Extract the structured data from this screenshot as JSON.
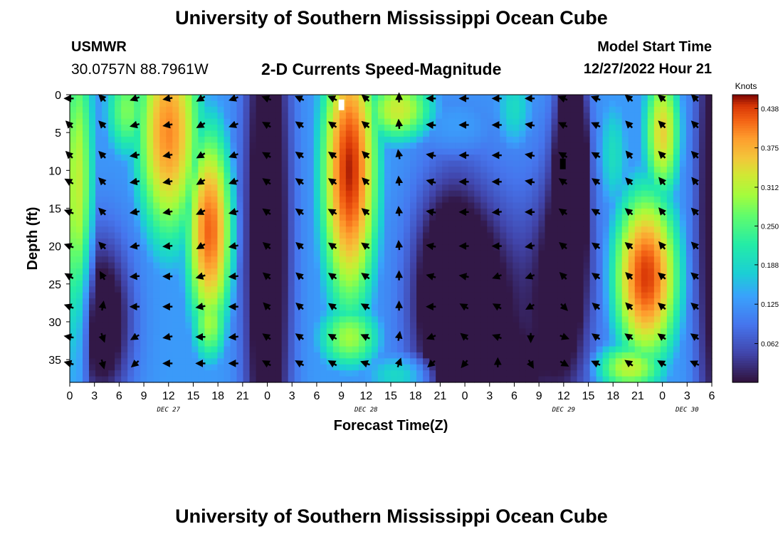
{
  "header": {
    "title": "University of Southern Mississippi Ocean Cube",
    "station": "USMWR",
    "coordinates": "30.0757N  88.7961W",
    "subtitle": "2-D Currents Speed-Magnitude",
    "model_start_label": "Model Start Time",
    "model_start_time": "12/27/2022 Hour 21"
  },
  "footer": {
    "title": "University of Southern Mississippi Ocean Cube"
  },
  "chart_data": {
    "type": "heatmap",
    "title": "2-D Currents Speed-Magnitude",
    "xlabel": "Forecast Time(Z)",
    "ylabel": "Depth (ft)",
    "x_range_hours": [
      0,
      78
    ],
    "y_range": [
      0,
      38
    ],
    "x_tick_labels": [
      "0",
      "3",
      "6",
      "9",
      "12",
      "15",
      "18",
      "21",
      "0",
      "3",
      "6",
      "9",
      "12",
      "15",
      "18",
      "21",
      "0",
      "3",
      "6",
      "9",
      "12",
      "15",
      "18",
      "21",
      "0",
      "3",
      "6"
    ],
    "y_ticks": [
      0,
      5,
      10,
      15,
      20,
      25,
      30,
      35
    ],
    "y_tick_labels": [
      "0",
      "5",
      "10",
      "15",
      "20",
      "25",
      "30",
      "35"
    ],
    "date_labels": [
      {
        "label": "DEC 27",
        "hour": 12
      },
      {
        "label": "DEC 28",
        "hour": 36
      },
      {
        "label": "DEC 29",
        "hour": 60
      },
      {
        "label": "DEC 30",
        "hour": 75
      }
    ],
    "colorbar": {
      "label": "Knots",
      "min": 0.0,
      "max": 0.46,
      "ticks": [
        "0.438",
        "0.375",
        "0.312",
        "0.250",
        "0.188",
        "0.125",
        "0.062"
      ],
      "tick_values": [
        0.438,
        0.375,
        0.312,
        0.25,
        0.188,
        0.125,
        0.062
      ]
    },
    "speed_features": [
      {
        "hour": 1,
        "depth": 15,
        "speed": 0.33,
        "sx": 1.8,
        "sd": 22
      },
      {
        "hour": 7,
        "depth": 2,
        "speed": 0.28,
        "sx": 2.5,
        "sd": 6
      },
      {
        "hour": 12,
        "depth": 5,
        "speed": 0.4,
        "sx": 3.5,
        "sd": 13
      },
      {
        "hour": 17,
        "depth": 18,
        "speed": 0.42,
        "sx": 2.5,
        "sd": 12
      },
      {
        "hour": 17,
        "depth": 30,
        "speed": 0.3,
        "sx": 2,
        "sd": 5
      },
      {
        "hour": 34,
        "depth": 10,
        "speed": 0.45,
        "sx": 3,
        "sd": 16
      },
      {
        "hour": 34,
        "depth": 32,
        "speed": 0.3,
        "sx": 3.5,
        "sd": 4
      },
      {
        "hour": 40,
        "depth": 2,
        "speed": 0.33,
        "sx": 4,
        "sd": 4
      },
      {
        "hour": 41,
        "depth": 37,
        "speed": 0.22,
        "sx": 5,
        "sd": 3
      },
      {
        "hour": 47,
        "depth": 5,
        "speed": 0.16,
        "sx": 6,
        "sd": 6
      },
      {
        "hour": 54,
        "depth": 2,
        "speed": 0.2,
        "sx": 2.5,
        "sd": 6
      },
      {
        "hour": 66,
        "depth": 8,
        "speed": 0.2,
        "sx": 2,
        "sd": 8
      },
      {
        "hour": 70,
        "depth": 24,
        "speed": 0.44,
        "sx": 3.5,
        "sd": 10
      },
      {
        "hour": 72,
        "depth": 5,
        "speed": 0.35,
        "sx": 2,
        "sd": 8
      },
      {
        "hour": 68,
        "depth": 36,
        "speed": 0.32,
        "sx": 4,
        "sd": 3
      }
    ],
    "low_features": [
      {
        "hour": 4,
        "depth": 30,
        "amount": 0.18,
        "sx": 2.5,
        "sd": 8
      },
      {
        "hour": 24,
        "depth": 20,
        "amount": 0.2,
        "sx": 2,
        "sd": 30
      },
      {
        "hour": 46,
        "depth": 26,
        "amount": 0.16,
        "sx": 3,
        "sd": 10
      },
      {
        "hour": 50,
        "depth": 30,
        "amount": 0.15,
        "sx": 5,
        "sd": 12
      },
      {
        "hour": 52,
        "depth": 37,
        "amount": 0.12,
        "sx": 3,
        "sd": 3
      },
      {
        "hour": 61,
        "depth": 8,
        "amount": 0.3,
        "sx": 1.2,
        "sd": 9
      },
      {
        "hour": 60,
        "depth": 25,
        "amount": 0.16,
        "sx": 2.5,
        "sd": 12
      },
      {
        "hour": 78,
        "depth": 15,
        "amount": 0.15,
        "sx": 1.5,
        "sd": 30
      }
    ],
    "vector_hours": [
      0,
      4,
      8,
      12,
      16,
      20,
      24,
      28,
      32,
      36,
      40,
      44,
      48,
      52,
      56,
      60,
      64,
      68,
      72,
      76
    ],
    "vector_depths": [
      0.5,
      4,
      8,
      11.5,
      15.5,
      20,
      24,
      28,
      32,
      35.5
    ],
    "vector_directions_deg": [
      [
        180,
        225,
        225,
        210,
        200,
        200,
        210,
        200,
        190,
        195
      ],
      [
        225,
        225,
        225,
        225,
        225,
        225,
        240,
        280,
        70,
        75
      ],
      [
        160,
        165,
        170,
        170,
        170,
        170,
        175,
        180,
        150,
        140
      ],
      [
        170,
        170,
        170,
        170,
        170,
        175,
        180,
        180,
        170,
        180
      ],
      [
        150,
        150,
        150,
        150,
        155,
        150,
        165,
        170,
        180,
        180
      ],
      [
        160,
        160,
        160,
        160,
        165,
        170,
        175,
        180,
        175,
        180
      ],
      [
        200,
        210,
        210,
        215,
        215,
        220,
        220,
        225,
        215,
        210
      ],
      [
        205,
        215,
        215,
        215,
        215,
        220,
        220,
        220,
        215,
        210
      ],
      [
        205,
        215,
        215,
        215,
        210,
        215,
        215,
        215,
        210,
        210
      ],
      [
        220,
        220,
        225,
        225,
        220,
        215,
        215,
        210,
        205,
        200
      ],
      [
        270,
        265,
        260,
        265,
        265,
        265,
        270,
        270,
        280,
        290
      ],
      [
        180,
        185,
        190,
        195,
        190,
        190,
        195,
        180,
        160,
        140
      ],
      [
        180,
        180,
        180,
        180,
        180,
        180,
        190,
        210,
        220,
        130
      ],
      [
        180,
        180,
        180,
        180,
        175,
        180,
        160,
        210,
        200,
        270
      ],
      [
        180,
        190,
        190,
        190,
        180,
        170,
        160,
        150,
        90,
        60
      ],
      [
        200,
        205,
        210,
        215,
        215,
        220,
        225,
        45,
        20,
        30
      ],
      [
        200,
        205,
        210,
        215,
        210,
        215,
        215,
        220,
        215,
        205
      ],
      [
        220,
        225,
        230,
        225,
        220,
        220,
        225,
        225,
        215,
        215
      ],
      [
        220,
        225,
        225,
        230,
        230,
        230,
        220,
        220,
        215,
        210
      ],
      [
        225,
        225,
        225,
        230,
        225,
        225,
        220,
        220,
        215,
        205
      ]
    ],
    "markers": [
      {
        "hour": 33,
        "depth": 1.2,
        "color": "#ffffff"
      },
      {
        "hour": 59.9,
        "depth": 9,
        "color": "#000000"
      }
    ]
  }
}
